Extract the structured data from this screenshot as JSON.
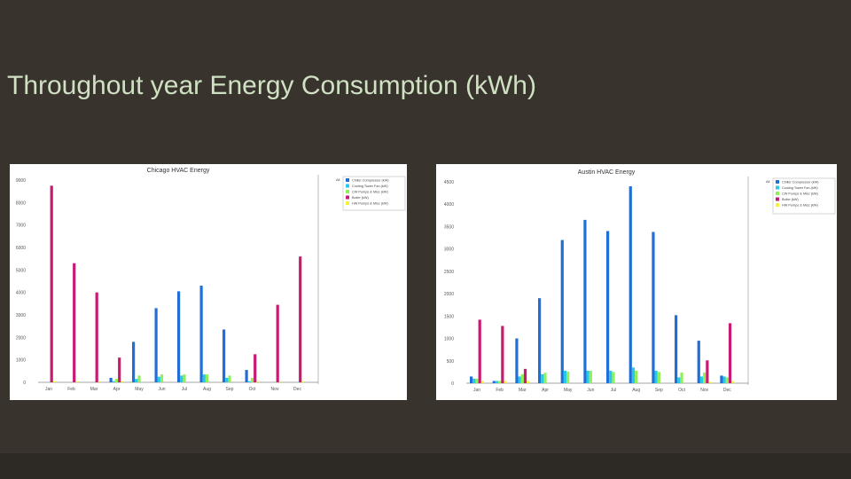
{
  "slide": {
    "title": "Throughout year Energy Consumption (kWh)"
  },
  "colors": {
    "background": "#38332d",
    "title_text": "#cfe0c3",
    "footer": "#2d2a26",
    "chiller": "#1f6fd6",
    "cooling_tower_fan": "#29c7e8",
    "cw_pumps": "#8ff05a",
    "boiler": "#c81a73",
    "hw_pumps": "#f2f23a"
  },
  "chart_data": [
    {
      "type": "bar",
      "title": "Chicago HVAC Energy",
      "categories": [
        "Jan",
        "Feb",
        "Mar",
        "Apr",
        "May",
        "Jun",
        "Jul",
        "Aug",
        "Sep",
        "Oct",
        "Nov",
        "Dec"
      ],
      "ylim": [
        0,
        9000
      ],
      "yticks": [
        "0",
        "1000",
        "2000",
        "3000",
        "4000",
        "5000",
        "6000",
        "7000",
        "8000",
        "9000"
      ],
      "legend_position": "top-right",
      "legend_title": "All",
      "series": [
        {
          "name": "Chiller Compressor (kW)",
          "color_key": "chiller",
          "values": [
            0,
            0,
            0,
            200,
            1800,
            3300,
            4050,
            4300,
            2350,
            550,
            0,
            0
          ]
        },
        {
          "name": "Cooling Tower Fan (kW)",
          "color_key": "cooling_tower_fan",
          "values": [
            0,
            0,
            0,
            50,
            150,
            250,
            300,
            350,
            200,
            50,
            0,
            0
          ]
        },
        {
          "name": "CW Pumps & Misc (kW)",
          "color_key": "cw_pumps",
          "values": [
            0,
            0,
            0,
            150,
            300,
            350,
            350,
            350,
            300,
            200,
            0,
            0
          ]
        },
        {
          "name": "Boiler (kW)",
          "color_key": "boiler",
          "values": [
            8750,
            5300,
            4000,
            1100,
            0,
            0,
            0,
            0,
            0,
            1250,
            3450,
            5600
          ]
        },
        {
          "name": "HW Pumps & Misc (kW)",
          "color_key": "hw_pumps",
          "values": [
            50,
            50,
            50,
            50,
            0,
            0,
            0,
            0,
            0,
            50,
            50,
            50
          ]
        }
      ]
    },
    {
      "type": "bar",
      "title": "Austin HVAC Energy",
      "categories": [
        "Jan",
        "Feb",
        "Mar",
        "Apr",
        "May",
        "Jun",
        "Jul",
        "Aug",
        "Sep",
        "Oct",
        "Nov",
        "Dec"
      ],
      "ylim": [
        0,
        4500
      ],
      "yticks": [
        "0",
        "500",
        "1000",
        "1500",
        "2000",
        "2500",
        "3000",
        "3500",
        "4000",
        "4500"
      ],
      "legend_position": "top-right",
      "legend_title": "All",
      "series": [
        {
          "name": "Chiller Compressor (kW)",
          "color_key": "chiller",
          "values": [
            150,
            50,
            1000,
            1900,
            3200,
            3650,
            3400,
            4400,
            3380,
            1520,
            950,
            170
          ]
        },
        {
          "name": "Cooling Tower Fan (kW)",
          "color_key": "cooling_tower_fan",
          "values": [
            100,
            50,
            150,
            200,
            280,
            280,
            280,
            350,
            280,
            130,
            150,
            150
          ]
        },
        {
          "name": "CW Pumps & Misc (kW)",
          "color_key": "cw_pumps",
          "values": [
            100,
            50,
            200,
            230,
            260,
            280,
            250,
            280,
            250,
            240,
            240,
            130
          ]
        },
        {
          "name": "Boiler (kW)",
          "color_key": "boiler",
          "values": [
            1420,
            1280,
            320,
            0,
            0,
            0,
            0,
            0,
            0,
            0,
            510,
            1340
          ]
        },
        {
          "name": "HW Pumps & Misc (kW)",
          "color_key": "hw_pumps",
          "values": [
            50,
            50,
            50,
            0,
            0,
            0,
            0,
            0,
            0,
            0,
            30,
            50
          ]
        }
      ]
    }
  ]
}
